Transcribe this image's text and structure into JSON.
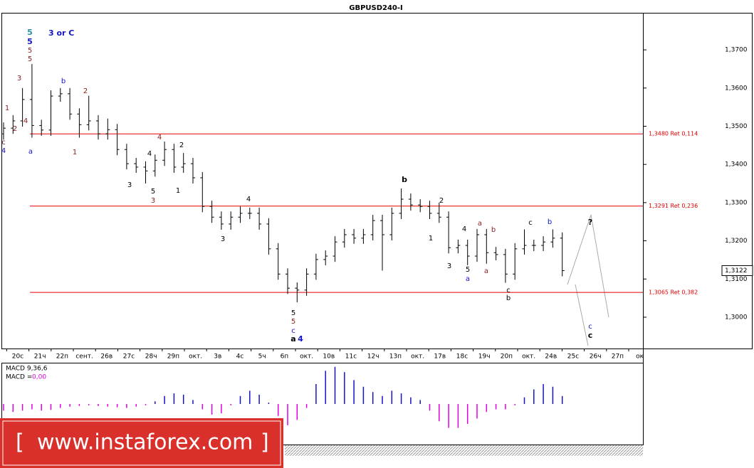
{
  "chart_data": {
    "type": "ohlc",
    "title": "GBPUSD240-I",
    "categories": [
      "20с",
      "21ч",
      "22п",
      "сент.",
      "26в",
      "27с",
      "28ч",
      "29п",
      "окт.",
      "3в",
      "4с",
      "5ч",
      "6п",
      "окт.",
      "10в",
      "11с",
      "12ч",
      "13п",
      "окт.",
      "17в",
      "18с",
      "19ч",
      "20п",
      "окт.",
      "24в",
      "25с",
      "26ч",
      "27п",
      "ок"
    ],
    "open": [
      1.348,
      1.3495,
      1.3514,
      1.357,
      1.3502,
      1.349,
      1.3579,
      1.3585,
      1.3532,
      1.3504,
      1.3514,
      1.348,
      1.3491,
      1.3439,
      1.3402,
      1.3393,
      1.3383,
      1.3411,
      1.3439,
      1.3393,
      1.3402,
      1.3365,
      1.329,
      1.3262,
      1.3244,
      1.3262,
      1.3272,
      1.3272,
      1.3244,
      1.3179,
      1.3113,
      1.3076,
      1.3071,
      1.3113,
      1.3151,
      1.316,
      1.3197,
      1.3216,
      1.3207,
      1.3216,
      1.3253,
      1.3216,
      1.3272,
      1.3309,
      1.3294,
      1.329,
      1.3272,
      1.3262,
      1.3182,
      1.3188,
      1.316,
      1.3216,
      1.3169,
      1.3164,
      1.3113,
      1.3179,
      1.3188,
      1.3188,
      1.3197,
      1.3207
    ],
    "high": [
      1.351,
      1.3529,
      1.36,
      1.3663,
      1.3517,
      1.3594,
      1.36,
      1.36,
      1.3547,
      1.358,
      1.3529,
      1.352,
      1.3506,
      1.3454,
      1.3417,
      1.3408,
      1.3426,
      1.346,
      1.3454,
      1.343,
      1.3417,
      1.338,
      1.3305,
      1.3277,
      1.3277,
      1.329,
      1.3287,
      1.3287,
      1.3259,
      1.3194,
      1.3128,
      1.3091,
      1.3128,
      1.3166,
      1.3175,
      1.3212,
      1.3231,
      1.3231,
      1.3231,
      1.3268,
      1.3268,
      1.3287,
      1.3337,
      1.3324,
      1.3309,
      1.3305,
      1.33,
      1.3277,
      1.3203,
      1.3203,
      1.3231,
      1.3231,
      1.3184,
      1.3179,
      1.3194,
      1.323,
      1.3203,
      1.3212,
      1.323,
      1.3222
    ],
    "low": [
      1.3465,
      1.348,
      1.3499,
      1.347,
      1.3475,
      1.3475,
      1.3564,
      1.3517,
      1.347,
      1.3489,
      1.3465,
      1.3465,
      1.3424,
      1.3387,
      1.3378,
      1.335,
      1.3368,
      1.3396,
      1.3378,
      1.3378,
      1.335,
      1.3275,
      1.3247,
      1.3229,
      1.3229,
      1.3247,
      1.3257,
      1.3229,
      1.3164,
      1.3098,
      1.3061,
      1.3039,
      1.3056,
      1.3098,
      1.3136,
      1.3145,
      1.3182,
      1.3192,
      1.3192,
      1.3201,
      1.3122,
      1.3201,
      1.3257,
      1.3279,
      1.3275,
      1.3257,
      1.3247,
      1.3167,
      1.3167,
      1.3136,
      1.3145,
      1.314,
      1.3149,
      1.309,
      1.3098,
      1.3164,
      1.3173,
      1.3173,
      1.3182,
      1.3107
    ],
    "close": [
      1.3495,
      1.3514,
      1.357,
      1.3502,
      1.349,
      1.3579,
      1.3585,
      1.3532,
      1.3504,
      1.3514,
      1.348,
      1.3491,
      1.3439,
      1.3402,
      1.3393,
      1.3383,
      1.3411,
      1.3439,
      1.3393,
      1.3402,
      1.3365,
      1.329,
      1.3262,
      1.3244,
      1.3262,
      1.3272,
      1.3272,
      1.3244,
      1.3179,
      1.3113,
      1.3076,
      1.3071,
      1.3113,
      1.3151,
      1.316,
      1.3197,
      1.3216,
      1.3207,
      1.3216,
      1.3253,
      1.3216,
      1.3272,
      1.3309,
      1.3294,
      1.329,
      1.3272,
      1.3262,
      1.3182,
      1.3188,
      1.316,
      1.3216,
      1.3169,
      1.3164,
      1.3113,
      1.3179,
      1.3188,
      1.3188,
      1.3197,
      1.3207,
      1.3122
    ],
    "color": "#000000",
    "ylim": [
      1.2918,
      1.3797
    ],
    "yticks": [
      {
        "value": 1.37,
        "label": "1,3700"
      },
      {
        "value": 1.36,
        "label": "1,3600"
      },
      {
        "value": 1.35,
        "label": "1,3500"
      },
      {
        "value": 1.34,
        "label": "1,3400"
      },
      {
        "value": 1.33,
        "label": "1,3300"
      },
      {
        "value": 1.32,
        "label": "1,3200"
      },
      {
        "value": 1.31,
        "label": "1,3100"
      },
      {
        "value": 1.3,
        "label": "1,3000"
      }
    ],
    "levels": [
      {
        "value": 1.348,
        "label": "1,3480 Ret 0,114",
        "color": "#e00000"
      },
      {
        "value": 1.3291,
        "label": "1,3291 Ret 0,236",
        "color": "#e00000"
      },
      {
        "value": 1.3065,
        "label": "1,3065 Ret 0,382",
        "color": "#e00000"
      }
    ],
    "last_price": {
      "value": 1.3122,
      "label": "1,3122"
    },
    "annotations": [
      {
        "text": "5",
        "color": "#2a8fa0",
        "bold": true
      },
      {
        "text": "3 or C",
        "color": "#1414c8",
        "bold": true
      },
      {
        "text": "5",
        "color": "#1414c8",
        "bold": true
      },
      {
        "text": "5",
        "color": "#8b1a1a",
        "bold": false
      },
      {
        "text": "5",
        "color": "#8b1a1a",
        "bold": false
      },
      {
        "text": "3",
        "color": "#8b1a1a",
        "bold": false
      },
      {
        "text": "1",
        "color": "#8b1a1a",
        "bold": false
      },
      {
        "text": "2",
        "color": "#8b1a1a",
        "bold": false
      },
      {
        "text": "4",
        "color": "#8b1a1a",
        "bold": false
      },
      {
        "text": "c",
        "color": "#8b1a1a",
        "bold": false
      },
      {
        "text": "4",
        "color": "#1414c8",
        "bold": false
      },
      {
        "text": "a",
        "color": "#1414c8",
        "bold": false
      },
      {
        "text": "b",
        "color": "#1414c8",
        "bold": false
      },
      {
        "text": "2",
        "color": "#8b1a1a",
        "bold": false
      },
      {
        "text": "1",
        "color": "#8b1a1a",
        "bold": false
      },
      {
        "text": "4",
        "color": "#8b1a1a",
        "bold": false
      },
      {
        "text": "4",
        "color": "#000000",
        "bold": false
      },
      {
        "text": "2",
        "color": "#000000",
        "bold": false
      },
      {
        "text": "3",
        "color": "#000000",
        "bold": false
      },
      {
        "text": "5",
        "color": "#000000",
        "bold": false
      },
      {
        "text": "3",
        "color": "#8b1a1a",
        "bold": false
      },
      {
        "text": "1",
        "color": "#000000",
        "bold": false
      },
      {
        "text": "4",
        "color": "#000000",
        "bold": false
      },
      {
        "text": "3",
        "color": "#000000",
        "bold": false
      },
      {
        "text": "b",
        "color": "#000000",
        "bold": true
      },
      {
        "text": "2",
        "color": "#000000",
        "bold": false
      },
      {
        "text": "1",
        "color": "#000000",
        "bold": false
      },
      {
        "text": "4",
        "color": "#000000",
        "bold": false
      },
      {
        "text": "a",
        "color": "#8b1a1a",
        "bold": false
      },
      {
        "text": "b",
        "color": "#8b1a1a",
        "bold": false
      },
      {
        "text": "3",
        "color": "#000000",
        "bold": false
      },
      {
        "text": "5",
        "color": "#000000",
        "bold": false
      },
      {
        "text": "a",
        "color": "#1414c8",
        "bold": false
      },
      {
        "text": "a",
        "color": "#8b1a1a",
        "bold": false
      },
      {
        "text": "c",
        "color": "#000000",
        "bold": false
      },
      {
        "text": "b",
        "color": "#1414c8",
        "bold": false
      },
      {
        "text": "c",
        "color": "#000000",
        "bold": false
      },
      {
        "text": "b",
        "color": "#000000",
        "bold": false
      },
      {
        "text": "?",
        "color": "#000000",
        "bold": true
      },
      {
        "text": "c",
        "color": "#1414c8",
        "bold": false
      },
      {
        "text": "c",
        "color": "#000000",
        "bold": true
      },
      {
        "text": "5",
        "color": "#000000",
        "bold": false
      },
      {
        "text": "5",
        "color": "#8b1a1a",
        "bold": false
      },
      {
        "text": "c",
        "color": "#1414c8",
        "bold": false
      },
      {
        "text": "a",
        "color": "#000000",
        "bold": true
      },
      {
        "text": "4",
        "color": "#1414c8",
        "bold": true
      }
    ],
    "macd": {
      "type": "bar",
      "label": "MACD 9,36,6",
      "value_name": "MACD =",
      "value_text": "0,00",
      "value_color": "#e000e0",
      "positive_color": "#1414c8",
      "negative_color": "#e000e0",
      "ylim": [
        -0.006,
        0.006
      ],
      "values": [
        -0.001,
        -0.0012,
        -0.001,
        -0.0008,
        -0.001,
        -0.0009,
        -0.0006,
        -0.0004,
        -0.0003,
        -0.0002,
        -0.0003,
        -0.0004,
        -0.0005,
        -0.0006,
        -0.0004,
        -0.0002,
        0.0004,
        0.0012,
        0.0016,
        0.0014,
        0.0006,
        -0.0008,
        -0.0016,
        -0.0014,
        -0.0002,
        0.0012,
        0.002,
        0.0014,
        0.0002,
        -0.0018,
        -0.0032,
        -0.0024,
        -0.0006,
        0.003,
        0.005,
        0.0056,
        0.0048,
        0.0036,
        0.0026,
        0.0018,
        0.0012,
        0.002,
        0.0016,
        0.001,
        0.0006,
        -0.001,
        -0.0026,
        -0.0036,
        -0.0036,
        -0.003,
        -0.0022,
        -0.0012,
        -0.0008,
        -0.0008,
        -0.0002,
        0.001,
        0.0022,
        0.003,
        0.0026,
        0.0012
      ]
    }
  },
  "watermark": {
    "open": "[",
    "text": "www.instaforex.com",
    "close": "]"
  }
}
